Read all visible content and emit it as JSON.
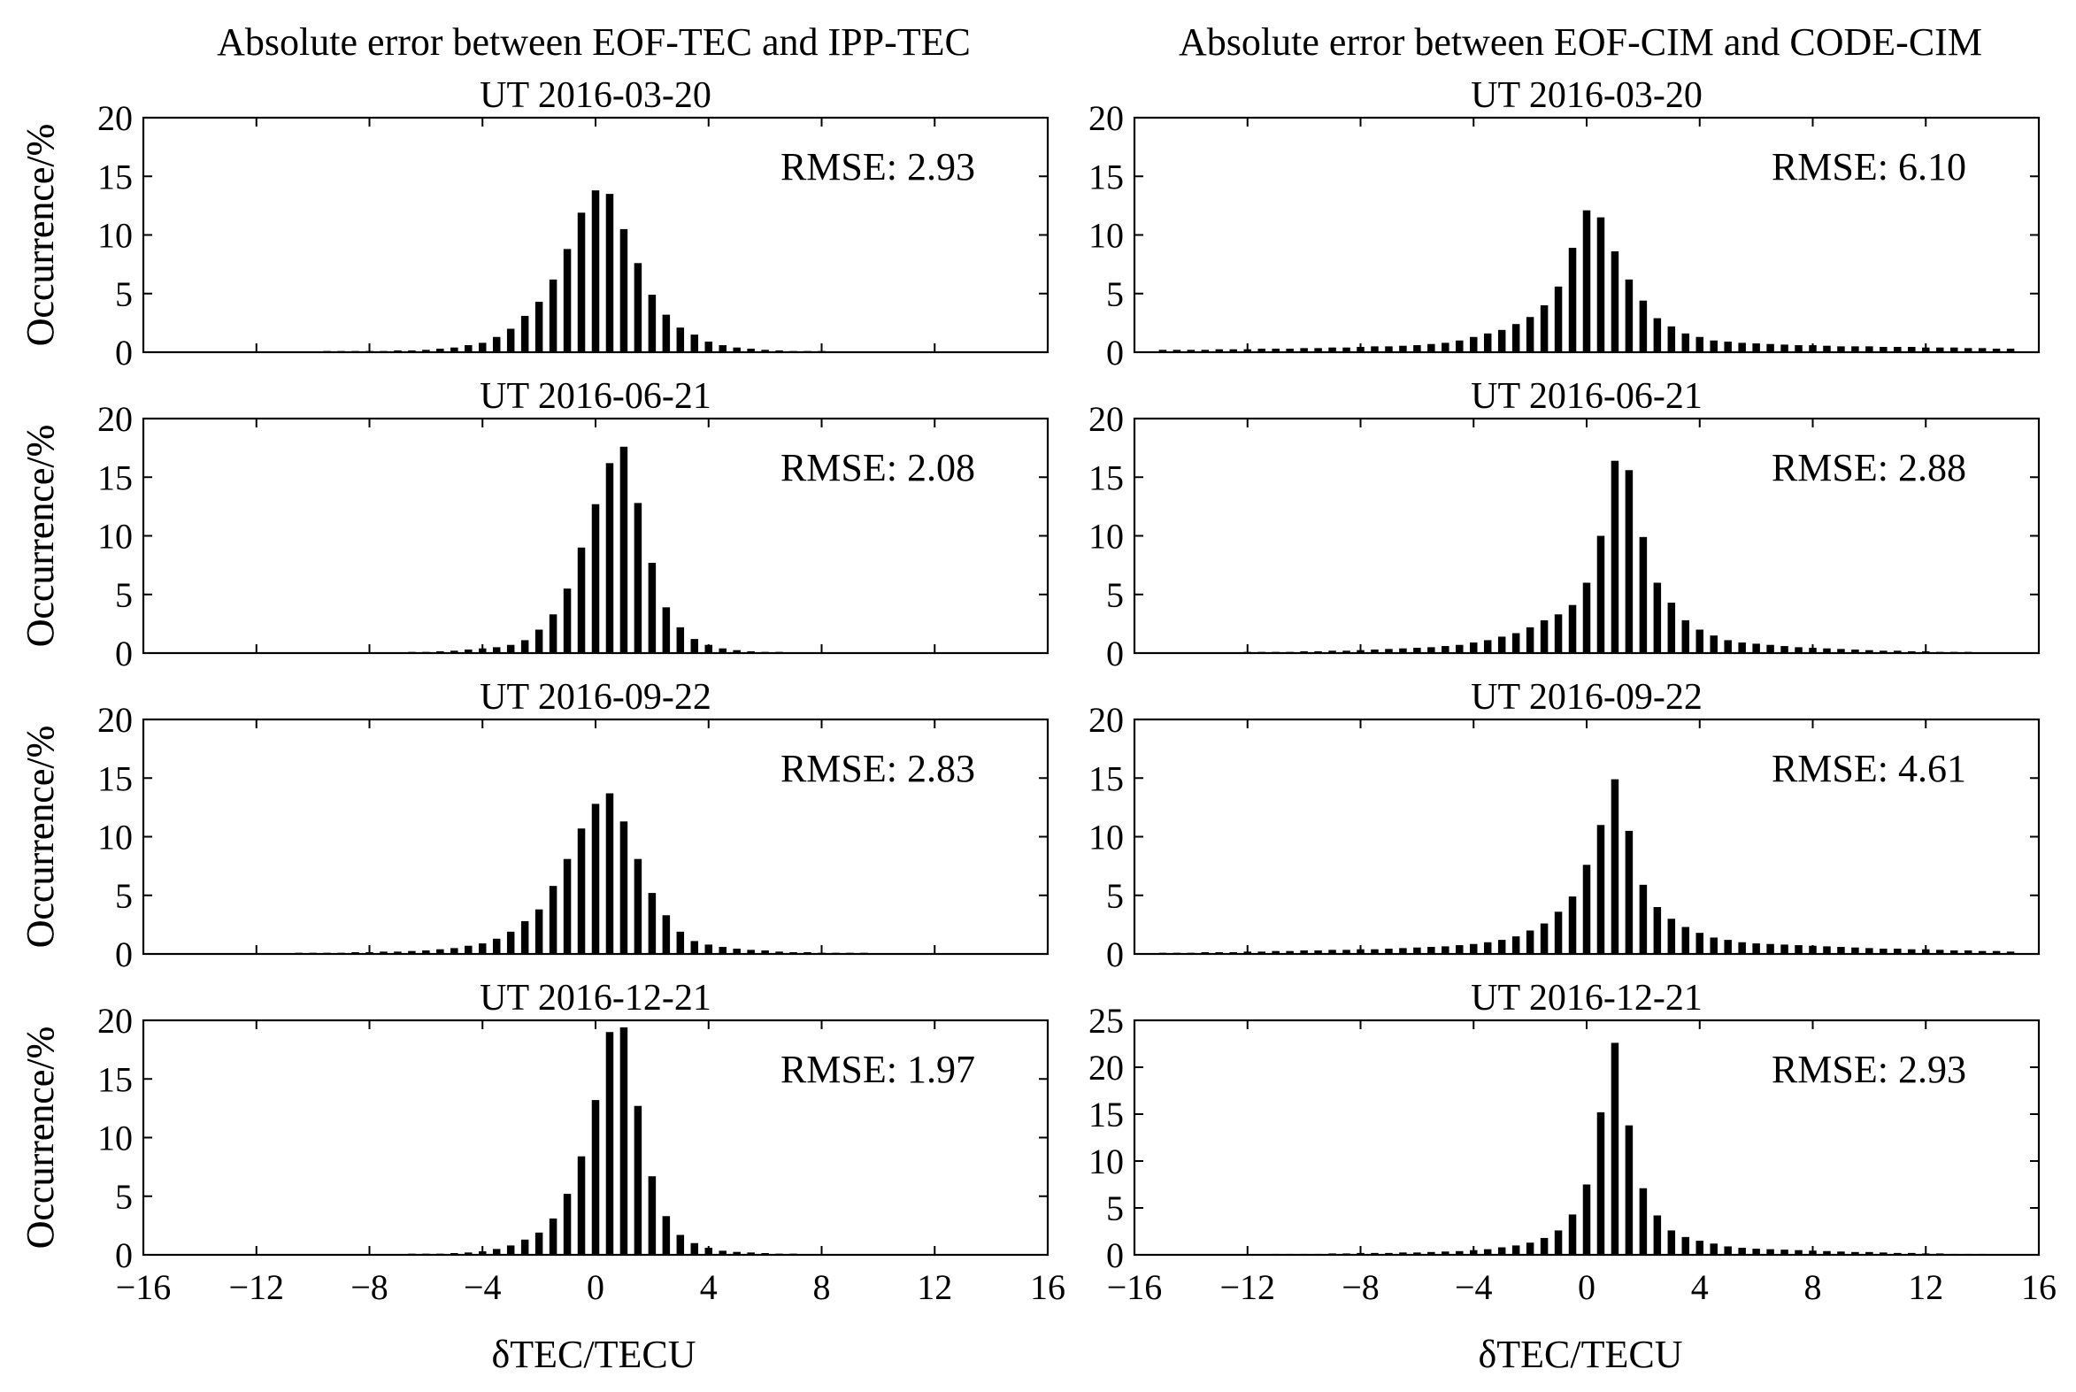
{
  "figure": {
    "column_titles": [
      "Absolute error between EOF-TEC and IPP-TEC",
      "Absolute error between EOF-CIM and CODE-CIM"
    ],
    "ylabel": "Occurrence/%",
    "xlabel": "δTEC/TECU",
    "colors": {
      "bar": "#000000",
      "axis": "#000000",
      "background": "#ffffff"
    }
  },
  "chart_data": [
    {
      "type": "bar",
      "title": "UT 2016-03-20",
      "column": "EOF-TEC vs IPP-TEC",
      "annotation": "RMSE: 2.93",
      "xlabel": "δTEC/TECU",
      "ylabel": "Occurrence/%",
      "xlim": [
        -16,
        16
      ],
      "ylim": [
        0,
        20
      ],
      "xticks": [
        -16,
        -12,
        -8,
        -4,
        0,
        4,
        8,
        12,
        16
      ],
      "yticks": [
        0,
        5,
        10,
        15,
        20
      ],
      "x": [
        -15,
        -14.5,
        -14,
        -13.5,
        -13,
        -12.5,
        -12,
        -11.5,
        -11,
        -10.5,
        -10,
        -9.5,
        -9,
        -8.5,
        -8,
        -7.5,
        -7,
        -6.5,
        -6,
        -5.5,
        -5,
        -4.5,
        -4,
        -3.5,
        -3,
        -2.5,
        -2,
        -1.5,
        -1,
        -0.5,
        0,
        0.5,
        1,
        1.5,
        2,
        2.5,
        3,
        3.5,
        4,
        4.5,
        5,
        5.5,
        6,
        6.5,
        7,
        7.5,
        8,
        8.5,
        9,
        9.5,
        10,
        10.5,
        11,
        11.5,
        12,
        12.5,
        13,
        13.5,
        14,
        14.5,
        15
      ],
      "values": [
        0.05,
        0.05,
        0.05,
        0.05,
        0.05,
        0.05,
        0.05,
        0.05,
        0.05,
        0.05,
        0.05,
        0.1,
        0.1,
        0.1,
        0.1,
        0.1,
        0.15,
        0.15,
        0.2,
        0.3,
        0.4,
        0.6,
        0.8,
        1.3,
        2,
        3.1,
        4.3,
        6.2,
        8.8,
        11.9,
        13.8,
        13.5,
        10.5,
        7.6,
        4.9,
        3.2,
        2.1,
        1.5,
        0.9,
        0.6,
        0.4,
        0.3,
        0.2,
        0.15,
        0.1,
        0.1,
        0.1,
        0.05,
        0.05,
        0.05,
        0.05,
        0.05,
        0.05,
        0.05,
        0.05,
        0.05,
        0.05,
        0.05,
        0.05,
        0.05,
        0.05
      ]
    },
    {
      "type": "bar",
      "title": "UT 2016-03-20",
      "column": "EOF-CIM vs CODE-CIM",
      "annotation": "RMSE: 6.10",
      "xlabel": "δTEC/TECU",
      "ylabel": "Occurrence/%",
      "xlim": [
        -16,
        16
      ],
      "ylim": [
        0,
        20
      ],
      "xticks": [
        -16,
        -12,
        -8,
        -4,
        0,
        4,
        8,
        12,
        16
      ],
      "yticks": [
        0,
        5,
        10,
        15,
        20
      ],
      "x": [
        -15,
        -14.5,
        -14,
        -13.5,
        -13,
        -12.5,
        -12,
        -11.5,
        -11,
        -10.5,
        -10,
        -9.5,
        -9,
        -8.5,
        -8,
        -7.5,
        -7,
        -6.5,
        -6,
        -5.5,
        -5,
        -4.5,
        -4,
        -3.5,
        -3,
        -2.5,
        -2,
        -1.5,
        -1,
        -0.5,
        0,
        0.5,
        1,
        1.5,
        2,
        2.5,
        3,
        3.5,
        4,
        4.5,
        5,
        5.5,
        6,
        6.5,
        7,
        7.5,
        8,
        8.5,
        9,
        9.5,
        10,
        10.5,
        11,
        11.5,
        12,
        12.5,
        13,
        13.5,
        14,
        14.5,
        15
      ],
      "values": [
        0.2,
        0.2,
        0.2,
        0.2,
        0.25,
        0.25,
        0.25,
        0.3,
        0.3,
        0.3,
        0.35,
        0.35,
        0.4,
        0.4,
        0.45,
        0.5,
        0.5,
        0.55,
        0.6,
        0.7,
        0.8,
        1,
        1.3,
        1.6,
        1.9,
        2.4,
        3,
        4,
        5.6,
        8.9,
        12.1,
        11.5,
        8.6,
        6.2,
        4.4,
        2.9,
        2.2,
        1.6,
        1.3,
        1,
        0.9,
        0.8,
        0.75,
        0.7,
        0.65,
        0.6,
        0.6,
        0.55,
        0.5,
        0.5,
        0.5,
        0.45,
        0.45,
        0.45,
        0.4,
        0.4,
        0.4,
        0.35,
        0.35,
        0.3,
        0.3
      ]
    },
    {
      "type": "bar",
      "title": "UT 2016-06-21",
      "column": "EOF-TEC vs IPP-TEC",
      "annotation": "RMSE: 2.08",
      "xlabel": "δTEC/TECU",
      "ylabel": "Occurrence/%",
      "xlim": [
        -16,
        16
      ],
      "ylim": [
        0,
        20
      ],
      "xticks": [
        -16,
        -12,
        -8,
        -4,
        0,
        4,
        8,
        12,
        16
      ],
      "yticks": [
        0,
        5,
        10,
        15,
        20
      ],
      "x": [
        -15,
        -14.5,
        -14,
        -13.5,
        -13,
        -12.5,
        -12,
        -11.5,
        -11,
        -10.5,
        -10,
        -9.5,
        -9,
        -8.5,
        -8,
        -7.5,
        -7,
        -6.5,
        -6,
        -5.5,
        -5,
        -4.5,
        -4,
        -3.5,
        -3,
        -2.5,
        -2,
        -1.5,
        -1,
        -0.5,
        0,
        0.5,
        1,
        1.5,
        2,
        2.5,
        3,
        3.5,
        4,
        4.5,
        5,
        5.5,
        6,
        6.5,
        7,
        7.5,
        8,
        8.5,
        9,
        9.5,
        10,
        10.5,
        11,
        11.5,
        12,
        12.5,
        13,
        13.5,
        14,
        14.5,
        15
      ],
      "values": [
        0.05,
        0.05,
        0.05,
        0.05,
        0.05,
        0.05,
        0.05,
        0.05,
        0.05,
        0.05,
        0.05,
        0.05,
        0.05,
        0.05,
        0.05,
        0.05,
        0.05,
        0.1,
        0.1,
        0.15,
        0.2,
        0.3,
        0.4,
        0.5,
        0.7,
        1.1,
        2,
        3.3,
        5.5,
        9,
        12.7,
        16.2,
        17.6,
        12.8,
        7.7,
        3.9,
        2.2,
        1.2,
        0.7,
        0.4,
        0.25,
        0.15,
        0.1,
        0.1,
        0.05,
        0.05,
        0.05,
        0.05,
        0.05,
        0.05,
        0.05,
        0.05,
        0.05,
        0.05,
        0.05,
        0.05,
        0.05,
        0.05,
        0.05,
        0.05,
        0.05
      ]
    },
    {
      "type": "bar",
      "title": "UT 2016-06-21",
      "column": "EOF-CIM vs CODE-CIM",
      "annotation": "RMSE: 2.88",
      "xlabel": "δTEC/TECU",
      "ylabel": "Occurrence/%",
      "xlim": [
        -16,
        16
      ],
      "ylim": [
        0,
        20
      ],
      "xticks": [
        -16,
        -12,
        -8,
        -4,
        0,
        4,
        8,
        12,
        16
      ],
      "yticks": [
        0,
        5,
        10,
        15,
        20
      ],
      "x": [
        -15,
        -14.5,
        -14,
        -13.5,
        -13,
        -12.5,
        -12,
        -11.5,
        -11,
        -10.5,
        -10,
        -9.5,
        -9,
        -8.5,
        -8,
        -7.5,
        -7,
        -6.5,
        -6,
        -5.5,
        -5,
        -4.5,
        -4,
        -3.5,
        -3,
        -2.5,
        -2,
        -1.5,
        -1,
        -0.5,
        0,
        0.5,
        1,
        1.5,
        2,
        2.5,
        3,
        3.5,
        4,
        4.5,
        5,
        5.5,
        6,
        6.5,
        7,
        7.5,
        8,
        8.5,
        9,
        9.5,
        10,
        10.5,
        11,
        11.5,
        12,
        12.5,
        13,
        13.5,
        14,
        14.5,
        15
      ],
      "values": [
        0.05,
        0.05,
        0.05,
        0.05,
        0.05,
        0.05,
        0.1,
        0.1,
        0.1,
        0.1,
        0.15,
        0.15,
        0.2,
        0.2,
        0.25,
        0.3,
        0.35,
        0.4,
        0.45,
        0.5,
        0.6,
        0.7,
        0.9,
        1.1,
        1.4,
        1.7,
        2.2,
        2.8,
        3.3,
        4.1,
        6,
        10,
        16.4,
        15.6,
        9.9,
        6,
        4.3,
        2.8,
        2,
        1.5,
        1.1,
        0.9,
        0.8,
        0.7,
        0.6,
        0.5,
        0.45,
        0.4,
        0.35,
        0.3,
        0.25,
        0.2,
        0.2,
        0.15,
        0.15,
        0.1,
        0.1,
        0.1,
        0.05,
        0.05,
        0.05
      ]
    },
    {
      "type": "bar",
      "title": "UT 2016-09-22",
      "column": "EOF-TEC vs IPP-TEC",
      "annotation": "RMSE: 2.83",
      "xlabel": "δTEC/TECU",
      "ylabel": "Occurrence/%",
      "xlim": [
        -16,
        16
      ],
      "ylim": [
        0,
        20
      ],
      "xticks": [
        -16,
        -12,
        -8,
        -4,
        0,
        4,
        8,
        12,
        16
      ],
      "yticks": [
        0,
        5,
        10,
        15,
        20
      ],
      "x": [
        -15,
        -14.5,
        -14,
        -13.5,
        -13,
        -12.5,
        -12,
        -11.5,
        -11,
        -10.5,
        -10,
        -9.5,
        -9,
        -8.5,
        -8,
        -7.5,
        -7,
        -6.5,
        -6,
        -5.5,
        -5,
        -4.5,
        -4,
        -3.5,
        -3,
        -2.5,
        -2,
        -1.5,
        -1,
        -0.5,
        0,
        0.5,
        1,
        1.5,
        2,
        2.5,
        3,
        3.5,
        4,
        4.5,
        5,
        5.5,
        6,
        6.5,
        7,
        7.5,
        8,
        8.5,
        9,
        9.5,
        10,
        10.5,
        11,
        11.5,
        12,
        12.5,
        13,
        13.5,
        14,
        14.5,
        15
      ],
      "values": [
        0.05,
        0.05,
        0.05,
        0.05,
        0.05,
        0.05,
        0.05,
        0.05,
        0.05,
        0.1,
        0.1,
        0.1,
        0.1,
        0.15,
        0.15,
        0.2,
        0.2,
        0.25,
        0.3,
        0.4,
        0.5,
        0.7,
        0.9,
        1.3,
        1.9,
        2.8,
        3.8,
        5.8,
        8.1,
        10.7,
        12.8,
        13.7,
        11.3,
        8.1,
        5.2,
        3.3,
        1.9,
        1.1,
        0.8,
        0.6,
        0.45,
        0.35,
        0.3,
        0.2,
        0.15,
        0.15,
        0.1,
        0.1,
        0.1,
        0.1,
        0.05,
        0.05,
        0.05,
        0.05,
        0.05,
        0.05,
        0.05,
        0.05,
        0.05,
        0.05,
        0.05
      ]
    },
    {
      "type": "bar",
      "title": "UT 2016-09-22",
      "column": "EOF-CIM vs CODE-CIM",
      "annotation": "RMSE: 4.61",
      "xlabel": "δTEC/TECU",
      "ylabel": "Occurrence/%",
      "xlim": [
        -16,
        16
      ],
      "ylim": [
        0,
        20
      ],
      "xticks": [
        -16,
        -12,
        -8,
        -4,
        0,
        4,
        8,
        12,
        16
      ],
      "yticks": [
        0,
        5,
        10,
        15,
        20
      ],
      "x": [
        -15,
        -14.5,
        -14,
        -13.5,
        -13,
        -12.5,
        -12,
        -11.5,
        -11,
        -10.5,
        -10,
        -9.5,
        -9,
        -8.5,
        -8,
        -7.5,
        -7,
        -6.5,
        -6,
        -5.5,
        -5,
        -4.5,
        -4,
        -3.5,
        -3,
        -2.5,
        -2,
        -1.5,
        -1,
        -0.5,
        0,
        0.5,
        1,
        1.5,
        2,
        2.5,
        3,
        3.5,
        4,
        4.5,
        5,
        5.5,
        6,
        6.5,
        7,
        7.5,
        8,
        8.5,
        9,
        9.5,
        10,
        10.5,
        11,
        11.5,
        12,
        12.5,
        13,
        13.5,
        14,
        14.5,
        15
      ],
      "values": [
        0.1,
        0.1,
        0.1,
        0.15,
        0.15,
        0.15,
        0.2,
        0.2,
        0.25,
        0.25,
        0.3,
        0.3,
        0.35,
        0.35,
        0.4,
        0.4,
        0.45,
        0.5,
        0.55,
        0.6,
        0.65,
        0.75,
        0.85,
        1,
        1.2,
        1.5,
        2,
        2.6,
        3.6,
        4.9,
        7.6,
        11,
        14.9,
        10.5,
        5.9,
        4,
        3,
        2.3,
        1.8,
        1.4,
        1.2,
        1,
        0.9,
        0.85,
        0.8,
        0.75,
        0.7,
        0.65,
        0.6,
        0.55,
        0.5,
        0.45,
        0.45,
        0.4,
        0.4,
        0.35,
        0.3,
        0.3,
        0.25,
        0.25,
        0.2
      ]
    },
    {
      "type": "bar",
      "title": "UT 2016-12-21",
      "column": "EOF-TEC vs IPP-TEC",
      "annotation": "RMSE: 1.97",
      "xlabel": "δTEC/TECU",
      "ylabel": "Occurrence/%",
      "xlim": [
        -16,
        16
      ],
      "ylim": [
        0,
        20
      ],
      "xticks": [
        -16,
        -12,
        -8,
        -4,
        0,
        4,
        8,
        12,
        16
      ],
      "yticks": [
        0,
        5,
        10,
        15,
        20
      ],
      "x": [
        -15,
        -14.5,
        -14,
        -13.5,
        -13,
        -12.5,
        -12,
        -11.5,
        -11,
        -10.5,
        -10,
        -9.5,
        -9,
        -8.5,
        -8,
        -7.5,
        -7,
        -6.5,
        -6,
        -5.5,
        -5,
        -4.5,
        -4,
        -3.5,
        -3,
        -2.5,
        -2,
        -1.5,
        -1,
        -0.5,
        0,
        0.5,
        1,
        1.5,
        2,
        2.5,
        3,
        3.5,
        4,
        4.5,
        5,
        5.5,
        6,
        6.5,
        7,
        7.5,
        8,
        8.5,
        9,
        9.5,
        10,
        10.5,
        11,
        11.5,
        12,
        12.5,
        13,
        13.5,
        14,
        14.5,
        15
      ],
      "values": [
        0.05,
        0.05,
        0.05,
        0.05,
        0.05,
        0.05,
        0.05,
        0.05,
        0.05,
        0.05,
        0.05,
        0.05,
        0.05,
        0.05,
        0.05,
        0.05,
        0.05,
        0.1,
        0.1,
        0.1,
        0.15,
        0.2,
        0.3,
        0.5,
        0.8,
        1.3,
        1.9,
        3.1,
        5.2,
        8.4,
        13.2,
        19,
        19.4,
        12.7,
        6.7,
        3.3,
        1.7,
        1,
        0.6,
        0.35,
        0.25,
        0.2,
        0.15,
        0.1,
        0.1,
        0.05,
        0.05,
        0.05,
        0.05,
        0.05,
        0.05,
        0.05,
        0.05,
        0.05,
        0.05,
        0.05,
        0.05,
        0.05,
        0.05,
        0.05,
        0.05
      ]
    },
    {
      "type": "bar",
      "title": "UT 2016-12-21",
      "column": "EOF-CIM vs CODE-CIM",
      "annotation": "RMSE: 2.93",
      "xlabel": "δTEC/TECU",
      "ylabel": "Occurrence/%",
      "xlim": [
        -16,
        16
      ],
      "ylim": [
        0,
        25
      ],
      "xticks": [
        -16,
        -12,
        -8,
        -4,
        0,
        4,
        8,
        12,
        16
      ],
      "yticks": [
        0,
        5,
        10,
        15,
        20,
        25
      ],
      "x": [
        -15,
        -14.5,
        -14,
        -13.5,
        -13,
        -12.5,
        -12,
        -11.5,
        -11,
        -10.5,
        -10,
        -9.5,
        -9,
        -8.5,
        -8,
        -7.5,
        -7,
        -6.5,
        -6,
        -5.5,
        -5,
        -4.5,
        -4,
        -3.5,
        -3,
        -2.5,
        -2,
        -1.5,
        -1,
        -0.5,
        0,
        0.5,
        1,
        1.5,
        2,
        2.5,
        3,
        3.5,
        4,
        4.5,
        5,
        5.5,
        6,
        6.5,
        7,
        7.5,
        8,
        8.5,
        9,
        9.5,
        10,
        10.5,
        11,
        11.5,
        12,
        12.5,
        13,
        13.5,
        14,
        14.5,
        15
      ],
      "values": [
        0.05,
        0.05,
        0.05,
        0.05,
        0.05,
        0.05,
        0.05,
        0.05,
        0.1,
        0.1,
        0.1,
        0.1,
        0.15,
        0.15,
        0.2,
        0.2,
        0.2,
        0.25,
        0.25,
        0.3,
        0.35,
        0.4,
        0.5,
        0.6,
        0.8,
        1,
        1.3,
        1.8,
        2.6,
        4.3,
        7.5,
        15.2,
        22.6,
        13.8,
        7.1,
        4.2,
        2.6,
        1.9,
        1.5,
        1.2,
        0.9,
        0.75,
        0.65,
        0.6,
        0.55,
        0.5,
        0.45,
        0.4,
        0.35,
        0.3,
        0.3,
        0.25,
        0.2,
        0.2,
        0.15,
        0.15,
        0.1,
        0.1,
        0.1,
        0.05,
        0.05
      ]
    }
  ]
}
